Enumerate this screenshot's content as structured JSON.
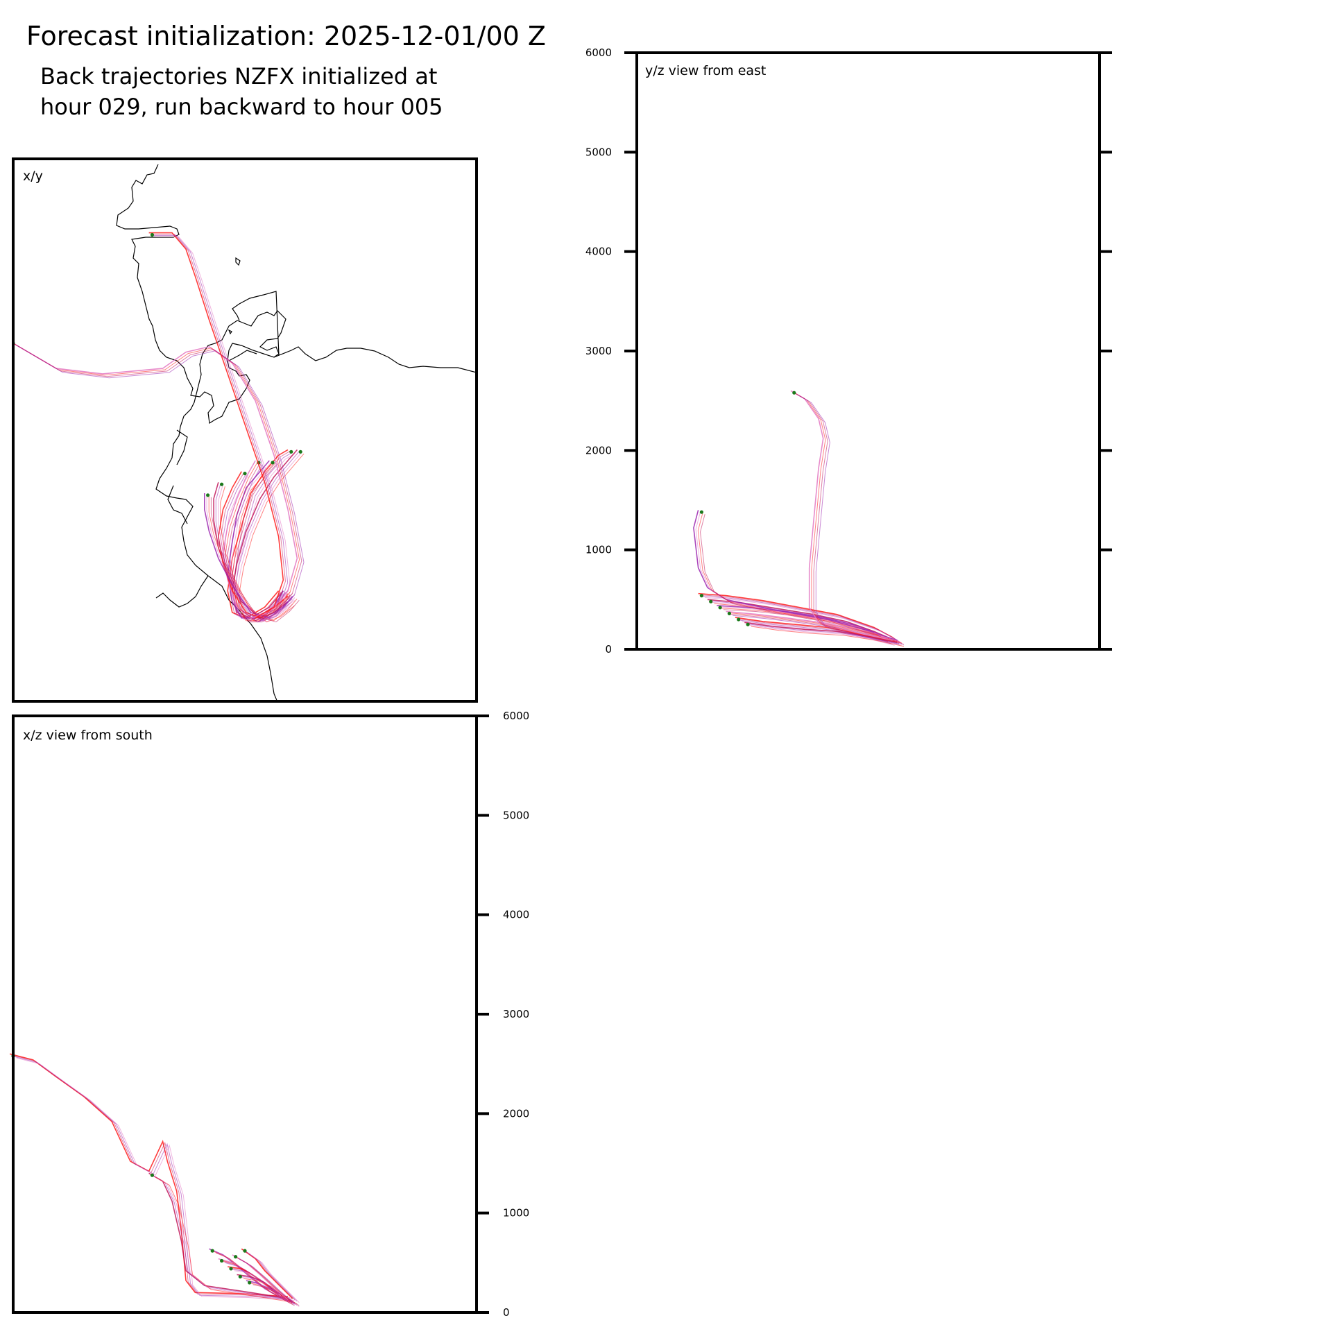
{
  "figure": {
    "title": "Forecast initialization: 2025-12-01/00 Z",
    "subtitle_lines": [
      "Back trajectories NZFX initialized at",
      "hour 029, run backward to hour 005"
    ]
  },
  "colors": {
    "late": "#ff1a1a",
    "mid": "#c2185b",
    "early": "#9c27b0",
    "faint": "#e377c2",
    "start_marker": "#1a7a1a",
    "coast": "#000000"
  },
  "chart_data": [
    {
      "type": "line",
      "panel": "xy",
      "label": "x/y",
      "description_units": "normalized map coordinates",
      "ylim": [
        0,
        1
      ],
      "xlim": [
        0,
        1
      ],
      "grid": false,
      "series": [
        {
          "values": [
            [
              0.6,
              0.54
            ],
            [
              0.58,
              0.55
            ],
            [
              0.55,
              0.58
            ],
            [
              0.52,
              0.62
            ],
            [
              0.5,
              0.68
            ],
            [
              0.48,
              0.74
            ],
            [
              0.47,
              0.8
            ],
            [
              0.48,
              0.84
            ],
            [
              0.51,
              0.85
            ],
            [
              0.55,
              0.83
            ],
            [
              0.58,
              0.8
            ]
          ]
        },
        {
          "values": [
            [
              0.62,
              0.54
            ],
            [
              0.6,
              0.56
            ],
            [
              0.57,
              0.59
            ],
            [
              0.54,
              0.63
            ],
            [
              0.51,
              0.69
            ],
            [
              0.49,
              0.75
            ],
            [
              0.48,
              0.8
            ],
            [
              0.49,
              0.84
            ],
            [
              0.52,
              0.85
            ],
            [
              0.56,
              0.83
            ],
            [
              0.59,
              0.8
            ]
          ]
        },
        {
          "values": [
            [
              0.56,
              0.56
            ],
            [
              0.54,
              0.58
            ],
            [
              0.51,
              0.61
            ],
            [
              0.49,
              0.66
            ],
            [
              0.48,
              0.71
            ],
            [
              0.47,
              0.77
            ],
            [
              0.48,
              0.82
            ],
            [
              0.5,
              0.85
            ],
            [
              0.53,
              0.85
            ],
            [
              0.57,
              0.83
            ],
            [
              0.59,
              0.8
            ]
          ]
        },
        {
          "values": [
            [
              0.53,
              0.56
            ],
            [
              0.51,
              0.59
            ],
            [
              0.49,
              0.63
            ],
            [
              0.47,
              0.68
            ],
            [
              0.46,
              0.73
            ],
            [
              0.47,
              0.78
            ],
            [
              0.49,
              0.83
            ],
            [
              0.52,
              0.85
            ],
            [
              0.55,
              0.84
            ],
            [
              0.58,
              0.82
            ],
            [
              0.6,
              0.8
            ]
          ]
        },
        {
          "values": [
            [
              0.5,
              0.58
            ],
            [
              0.48,
              0.61
            ],
            [
              0.46,
              0.65
            ],
            [
              0.45,
              0.7
            ],
            [
              0.46,
              0.75
            ],
            [
              0.48,
              0.8
            ],
            [
              0.51,
              0.84
            ],
            [
              0.54,
              0.85
            ],
            [
              0.57,
              0.83
            ],
            [
              0.6,
              0.81
            ]
          ]
        },
        {
          "values": [
            [
              0.45,
              0.6
            ],
            [
              0.44,
              0.63
            ],
            [
              0.44,
              0.67
            ],
            [
              0.45,
              0.72
            ],
            [
              0.47,
              0.77
            ],
            [
              0.5,
              0.82
            ],
            [
              0.54,
              0.85
            ],
            [
              0.57,
              0.84
            ],
            [
              0.6,
              0.82
            ]
          ]
        },
        {
          "values": [
            [
              0.42,
              0.62
            ],
            [
              0.42,
              0.65
            ],
            [
              0.43,
              0.69
            ],
            [
              0.45,
              0.74
            ],
            [
              0.48,
              0.79
            ],
            [
              0.52,
              0.84
            ],
            [
              0.56,
              0.85
            ],
            [
              0.59,
              0.83
            ],
            [
              0.61,
              0.81
            ]
          ]
        },
        {
          "values": [
            [
              0.0,
              0.34
            ],
            [
              0.1,
              0.39
            ],
            [
              0.2,
              0.4
            ],
            [
              0.33,
              0.39
            ],
            [
              0.38,
              0.36
            ],
            [
              0.43,
              0.35
            ],
            [
              0.48,
              0.38
            ],
            [
              0.53,
              0.45
            ],
            [
              0.57,
              0.55
            ],
            [
              0.6,
              0.65
            ],
            [
              0.62,
              0.74
            ],
            [
              0.6,
              0.8
            ],
            [
              0.56,
              0.84
            ],
            [
              0.52,
              0.85
            ]
          ]
        },
        {
          "values": [
            [
              0.3,
              0.14
            ],
            [
              0.35,
              0.14
            ],
            [
              0.38,
              0.17
            ],
            [
              0.4,
              0.22
            ],
            [
              0.43,
              0.3
            ],
            [
              0.47,
              0.4
            ],
            [
              0.51,
              0.5
            ],
            [
              0.55,
              0.6
            ],
            [
              0.58,
              0.7
            ],
            [
              0.59,
              0.78
            ],
            [
              0.57,
              0.83
            ],
            [
              0.53,
              0.85
            ]
          ]
        }
      ]
    },
    {
      "type": "line",
      "panel": "yz",
      "label": "y/z view from east",
      "ylabel": "",
      "ylim": [
        0,
        6000
      ],
      "yticks": [
        "0",
        "1000",
        "2000",
        "3000",
        "4000",
        "5000",
        "6000"
      ],
      "grid": false,
      "series": [
        {
          "values": [
            [
              0.14,
              540
            ],
            [
              0.2,
              520
            ],
            [
              0.28,
              470
            ],
            [
              0.36,
              400
            ],
            [
              0.44,
              330
            ],
            [
              0.52,
              200
            ],
            [
              0.56,
              100
            ],
            [
              0.57,
              60
            ]
          ]
        },
        {
          "values": [
            [
              0.16,
              480
            ],
            [
              0.23,
              450
            ],
            [
              0.31,
              390
            ],
            [
              0.39,
              330
            ],
            [
              0.46,
              260
            ],
            [
              0.52,
              160
            ],
            [
              0.56,
              80
            ]
          ]
        },
        {
          "values": [
            [
              0.18,
              420
            ],
            [
              0.25,
              400
            ],
            [
              0.33,
              360
            ],
            [
              0.41,
              300
            ],
            [
              0.48,
              220
            ],
            [
              0.53,
              130
            ],
            [
              0.57,
              70
            ]
          ]
        },
        {
          "values": [
            [
              0.2,
              360
            ],
            [
              0.27,
              330
            ],
            [
              0.34,
              290
            ],
            [
              0.42,
              240
            ],
            [
              0.49,
              170
            ],
            [
              0.55,
              90
            ]
          ]
        },
        {
          "values": [
            [
              0.22,
              300
            ],
            [
              0.28,
              260
            ],
            [
              0.35,
              230
            ],
            [
              0.42,
              200
            ],
            [
              0.49,
              130
            ],
            [
              0.55,
              60
            ]
          ]
        },
        {
          "values": [
            [
              0.24,
              250
            ],
            [
              0.3,
              210
            ],
            [
              0.37,
              180
            ],
            [
              0.44,
              160
            ],
            [
              0.51,
              110
            ],
            [
              0.57,
              50
            ]
          ]
        },
        {
          "values": [
            [
              0.14,
              1380
            ],
            [
              0.13,
              1200
            ],
            [
              0.14,
              800
            ],
            [
              0.16,
              600
            ],
            [
              0.2,
              480
            ],
            [
              0.3,
              380
            ],
            [
              0.42,
              280
            ],
            [
              0.52,
              150
            ]
          ]
        },
        {
          "values": [
            [
              0.34,
              2580
            ],
            [
              0.37,
              2500
            ],
            [
              0.4,
              2300
            ],
            [
              0.41,
              2100
            ],
            [
              0.4,
              1800
            ],
            [
              0.39,
              1300
            ],
            [
              0.38,
              800
            ],
            [
              0.38,
              400
            ],
            [
              0.4,
              250
            ],
            [
              0.48,
              150
            ],
            [
              0.56,
              70
            ]
          ]
        }
      ]
    },
    {
      "type": "line",
      "panel": "xz",
      "label": "x/z view from south",
      "ylabel": "",
      "ylim": [
        0,
        6000
      ],
      "yticks": [
        "0",
        "1000",
        "2000",
        "3000",
        "4000",
        "5000",
        "6000"
      ],
      "grid": false,
      "series": [
        {
          "values": [
            [
              0.0,
              2580
            ],
            [
              0.05,
              2520
            ],
            [
              0.1,
              2350
            ],
            [
              0.16,
              2150
            ],
            [
              0.22,
              1900
            ],
            [
              0.26,
              1500
            ],
            [
              0.3,
              1400
            ],
            [
              0.33,
              1700
            ],
            [
              0.34,
              1500
            ],
            [
              0.36,
              1200
            ],
            [
              0.37,
              800
            ],
            [
              0.38,
              300
            ],
            [
              0.4,
              180
            ],
            [
              0.5,
              170
            ],
            [
              0.6,
              140
            ]
          ]
        },
        {
          "values": [
            [
              0.3,
              1380
            ],
            [
              0.33,
              1300
            ],
            [
              0.35,
              1100
            ],
            [
              0.37,
              700
            ],
            [
              0.38,
              400
            ],
            [
              0.42,
              250
            ],
            [
              0.52,
              180
            ],
            [
              0.6,
              120
            ]
          ]
        },
        {
          "values": [
            [
              0.43,
              620
            ],
            [
              0.46,
              560
            ],
            [
              0.49,
              450
            ],
            [
              0.52,
              330
            ],
            [
              0.55,
              220
            ],
            [
              0.58,
              140
            ],
            [
              0.6,
              90
            ]
          ]
        },
        {
          "values": [
            [
              0.45,
              520
            ],
            [
              0.48,
              480
            ],
            [
              0.51,
              400
            ],
            [
              0.54,
              300
            ],
            [
              0.57,
              180
            ],
            [
              0.6,
              100
            ]
          ]
        },
        {
          "values": [
            [
              0.47,
              440
            ],
            [
              0.5,
              420
            ],
            [
              0.53,
              340
            ],
            [
              0.56,
              240
            ],
            [
              0.59,
              140
            ],
            [
              0.61,
              80
            ]
          ]
        },
        {
          "values": [
            [
              0.49,
              360
            ],
            [
              0.52,
              340
            ],
            [
              0.55,
              280
            ],
            [
              0.57,
              200
            ],
            [
              0.6,
              120
            ]
          ]
        },
        {
          "values": [
            [
              0.51,
              300
            ],
            [
              0.53,
              280
            ],
            [
              0.56,
              220
            ],
            [
              0.59,
              150
            ],
            [
              0.61,
              90
            ]
          ]
        },
        {
          "values": [
            [
              0.48,
              560
            ],
            [
              0.51,
              480
            ],
            [
              0.54,
              360
            ],
            [
              0.57,
              230
            ],
            [
              0.6,
              110
            ]
          ]
        },
        {
          "values": [
            [
              0.5,
              620
            ],
            [
              0.53,
              520
            ],
            [
              0.55,
              400
            ],
            [
              0.58,
              260
            ],
            [
              0.61,
              120
            ]
          ]
        }
      ]
    }
  ]
}
